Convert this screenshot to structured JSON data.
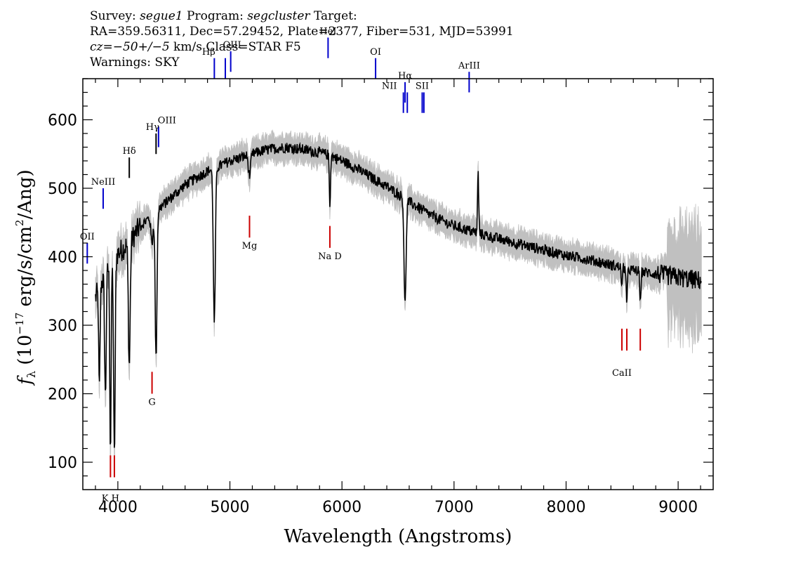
{
  "header": {
    "survey_label": "Survey:",
    "survey": "segue1",
    "program_label": "Program:",
    "program": "segcluster",
    "target_label": "Target:",
    "line2": "RA=359.56311, Dec=57.29452, Plate=2377, Fiber=531, MJD=53991",
    "cz_symbol": "cz",
    "cz_value": "=−50+/−5",
    "cz_units": "km/s",
    "class_text": "Class=STAR F5",
    "warnings": "Warnings: SKY"
  },
  "chart_data": {
    "type": "line",
    "xlabel": "Wavelength (Angstroms)",
    "ylabel_main": "f",
    "ylabel_sub": "λ",
    "ylabel_rest": " (10",
    "ylabel_exp": "−17",
    "ylabel_units": " erg/s/cm",
    "ylabel_exp2": "2",
    "ylabel_end": "/Ang)",
    "xlim": [
      3700,
      9300
    ],
    "ylim": [
      60,
      660
    ],
    "x_ticks": [
      4000,
      5000,
      6000,
      7000,
      8000,
      9000
    ],
    "x_tick_labels": [
      "4000",
      "5000",
      "6000",
      "7000",
      "8000",
      "9000"
    ],
    "y_ticks": [
      100,
      200,
      300,
      400,
      500,
      600
    ],
    "y_tick_labels": [
      "100",
      "200",
      "300",
      "400",
      "500",
      "600"
    ],
    "continuum": [
      [
        3800,
        340
      ],
      [
        3900,
        380
      ],
      [
        4000,
        405
      ],
      [
        4100,
        420
      ],
      [
        4200,
        445
      ],
      [
        4300,
        460
      ],
      [
        4400,
        475
      ],
      [
        4500,
        490
      ],
      [
        4600,
        505
      ],
      [
        4700,
        515
      ],
      [
        4800,
        525
      ],
      [
        4900,
        532
      ],
      [
        5000,
        540
      ],
      [
        5100,
        545
      ],
      [
        5200,
        550
      ],
      [
        5300,
        555
      ],
      [
        5400,
        558
      ],
      [
        5500,
        560
      ],
      [
        5600,
        558
      ],
      [
        5700,
        555
      ],
      [
        5800,
        552
      ],
      [
        5900,
        548
      ],
      [
        6000,
        540
      ],
      [
        6100,
        532
      ],
      [
        6200,
        522
      ],
      [
        6300,
        512
      ],
      [
        6400,
        502
      ],
      [
        6500,
        492
      ],
      [
        6600,
        480
      ],
      [
        6700,
        470
      ],
      [
        6800,
        460
      ],
      [
        6900,
        452
      ],
      [
        7000,
        445
      ],
      [
        7200,
        435
      ],
      [
        7400,
        426
      ],
      [
        7600,
        418
      ],
      [
        7800,
        410
      ],
      [
        8000,
        402
      ],
      [
        8200,
        396
      ],
      [
        8400,
        388
      ],
      [
        8600,
        380
      ],
      [
        8800,
        375
      ],
      [
        9000,
        370
      ],
      [
        9200,
        365
      ]
    ],
    "absorption": [
      {
        "center": 3835,
        "depth": 150,
        "width": 6
      },
      {
        "center": 3889,
        "depth": 180,
        "width": 7
      },
      {
        "center": 3934,
        "depth": 270,
        "width": 6
      },
      {
        "center": 3969,
        "depth": 290,
        "width": 7
      },
      {
        "center": 4102,
        "depth": 180,
        "width": 8
      },
      {
        "center": 4305,
        "depth": 40,
        "width": 10
      },
      {
        "center": 4341,
        "depth": 215,
        "width": 8
      },
      {
        "center": 4861,
        "depth": 225,
        "width": 9
      },
      {
        "center": 5175,
        "depth": 30,
        "width": 10
      },
      {
        "center": 5892,
        "depth": 75,
        "width": 5
      },
      {
        "center": 6563,
        "depth": 155,
        "width": 9
      },
      {
        "center": 8498,
        "depth": 30,
        "width": 5
      },
      {
        "center": 8542,
        "depth": 55,
        "width": 5
      },
      {
        "center": 8662,
        "depth": 50,
        "width": 5
      }
    ],
    "emission": [
      {
        "center": 7215,
        "height": 90,
        "width": 5
      }
    ],
    "emission_lines": [
      {
        "label": "OII",
        "wave": 3727,
        "line_top": 420,
        "line_bottom": 390,
        "label_pos": "top",
        "label_offset": 0
      },
      {
        "label": "NeIII",
        "wave": 3869,
        "line_top": 500,
        "line_bottom": 470,
        "label_pos": "top",
        "label_offset": 0
      },
      {
        "label": "OIII",
        "wave": 4363,
        "line_top": 590,
        "line_bottom": 560,
        "label_pos": "top",
        "label_offset": 12
      },
      {
        "label": "Hβ",
        "wave": 4861,
        "line_top": 690,
        "line_bottom": 660,
        "label_pos": "top",
        "label_offset": -8
      },
      {
        "label": "OIII",
        "wave": 4959,
        "line_top": 690,
        "line_bottom": 660,
        "label_pos": "none",
        "label_offset": 0
      },
      {
        "label": "OIII",
        "wave": 5007,
        "line_top": 700,
        "line_bottom": 670,
        "label_pos": "top",
        "label_offset": 2
      },
      {
        "label": "HeI",
        "wave": 5876,
        "line_top": 720,
        "line_bottom": 690,
        "label_pos": "top",
        "label_offset": 0
      },
      {
        "label": "OI",
        "wave": 6300,
        "line_top": 690,
        "line_bottom": 660,
        "label_pos": "top",
        "label_offset": 0
      },
      {
        "label": "NII",
        "wave": 6548,
        "line_top": 640,
        "line_bottom": 610,
        "label_pos": "top",
        "label_offset": -20
      },
      {
        "label": "Hα",
        "wave": 6563,
        "line_top": 655,
        "line_bottom": 625,
        "label_pos": "top",
        "label_offset": 0
      },
      {
        "label": "NII",
        "wave": 6583,
        "line_top": 640,
        "line_bottom": 610,
        "label_pos": "none",
        "label_offset": 0
      },
      {
        "label": "SII",
        "wave": 6716,
        "line_top": 640,
        "line_bottom": 610,
        "label_pos": "top",
        "label_offset": 0
      },
      {
        "label": "SII",
        "wave": 6731,
        "line_top": 640,
        "line_bottom": 610,
        "label_pos": "none",
        "label_offset": 0
      },
      {
        "label": "ArIII",
        "wave": 7135,
        "line_top": 670,
        "line_bottom": 640,
        "label_pos": "top",
        "label_offset": 0
      }
    ],
    "balmer_lines": [
      {
        "label": "Hδ",
        "wave": 4102,
        "line_top": 545,
        "line_bottom": 515,
        "label_pos": "top",
        "label_offset": 0
      },
      {
        "label": "Hγ",
        "wave": 4341,
        "line_top": 580,
        "line_bottom": 550,
        "label_pos": "top",
        "label_offset": -5
      }
    ],
    "absorption_lines": [
      {
        "label": "K H",
        "wave": 3934,
        "line_top": 110,
        "line_bottom": 78,
        "label_pos": "bottom",
        "label_offset": 18
      },
      {
        "label": "",
        "wave": 3969,
        "line_top": 110,
        "line_bottom": 78,
        "label_pos": "none",
        "label_offset": 0
      },
      {
        "label": "G",
        "wave": 4305,
        "line_top": 232,
        "line_bottom": 200,
        "label_pos": "bottom",
        "label_offset": 0
      },
      {
        "label": "Mg",
        "wave": 5175,
        "line_top": 460,
        "line_bottom": 428,
        "label_pos": "bottom",
        "label_offset": 0
      },
      {
        "label": "Na D",
        "wave": 5892,
        "line_top": 445,
        "line_bottom": 413,
        "label_pos": "bottom",
        "label_offset": 0
      },
      {
        "label": "CaII",
        "wave": 8498,
        "line_top": 295,
        "line_bottom": 263,
        "label_pos": "bottom",
        "label_offset": 20
      },
      {
        "label": "",
        "wave": 8542,
        "line_top": 295,
        "line_bottom": 263,
        "label_pos": "none",
        "label_offset": 0
      },
      {
        "label": "",
        "wave": 8662,
        "line_top": 295,
        "line_bottom": 263,
        "label_pos": "none",
        "label_offset": 0
      }
    ],
    "colors": {
      "spectrum": "#000000",
      "error": "#c0c0c0",
      "emission_marker": "#0000cc",
      "absorption_marker": "#cc0000",
      "axes": "#000000"
    }
  }
}
